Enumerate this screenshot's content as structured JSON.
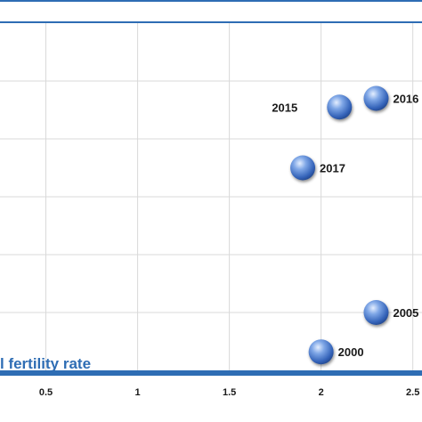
{
  "chart_data": {
    "type": "scatter",
    "xlabel": "l fertility rate",
    "xlim": [
      0.25,
      2.55
    ],
    "ylim": [
      0,
      6
    ],
    "x_ticks": [
      {
        "value": 0.5,
        "label": "0.5"
      },
      {
        "value": 1,
        "label": "1"
      },
      {
        "value": 1.5,
        "label": "1.5"
      },
      {
        "value": 2,
        "label": "2"
      },
      {
        "value": 2.5,
        "label": "2.5"
      }
    ],
    "grid": true,
    "points": [
      {
        "label": "2000",
        "x": 2.0,
        "y": 0.32,
        "label_side": "right"
      },
      {
        "label": "2005",
        "x": 2.3,
        "y": 1.0,
        "label_side": "right"
      },
      {
        "label": "2017",
        "x": 1.9,
        "y": 3.5,
        "label_side": "right"
      },
      {
        "label": "2015",
        "x": 2.1,
        "y": 4.55,
        "label_side": "left"
      },
      {
        "label": "2016",
        "x": 2.3,
        "y": 4.7,
        "label_side": "right"
      }
    ],
    "colors": {
      "marker": "#4a7cc9",
      "frame": "#2e6db4",
      "grid": "#d9d9d9",
      "axis_title": "#2e6db4"
    }
  }
}
